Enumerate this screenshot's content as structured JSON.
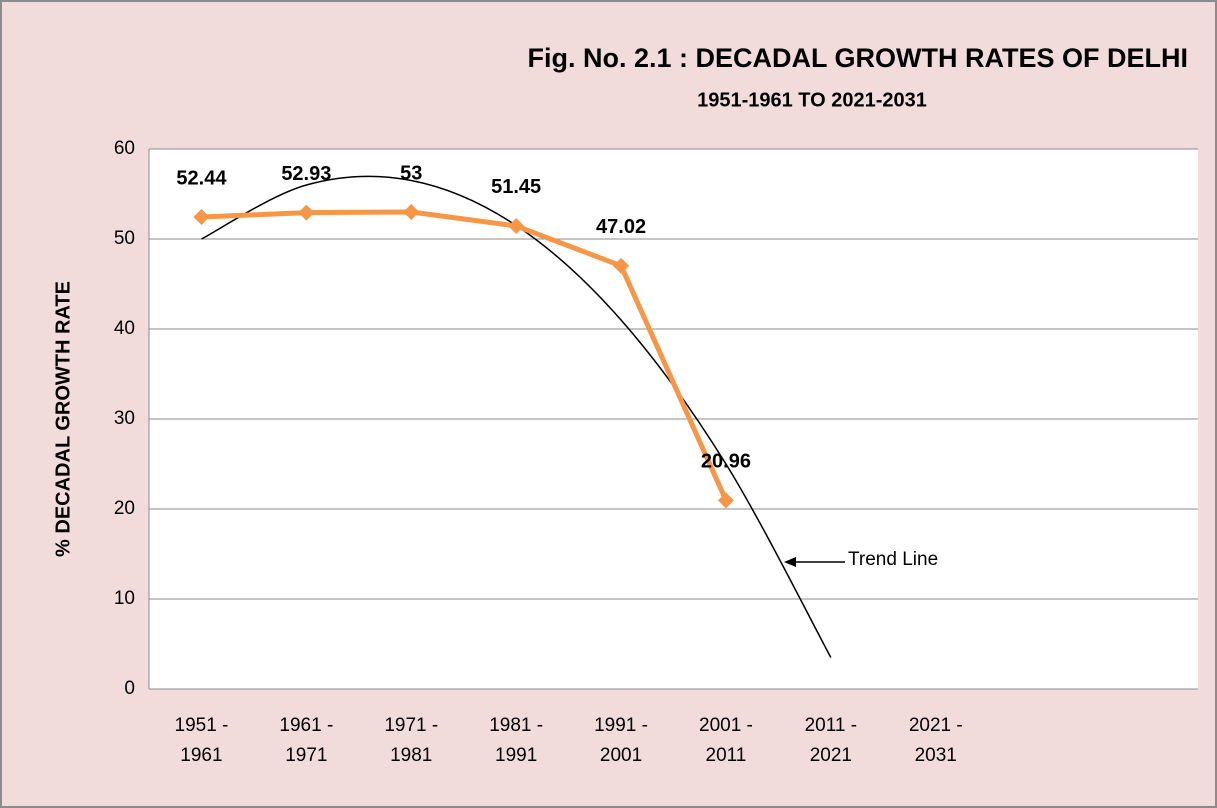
{
  "chart_data": {
    "type": "line",
    "title": "Fig. No. 2.1 : DECADAL GROWTH RATES OF DELHI",
    "subtitle": "1951-1961 TO 2021-2031",
    "y_label": "% DECADAL GROWTH RATE",
    "categories": [
      "1951 - 1961",
      "1961 - 1971",
      "1971 - 1981",
      "1981 - 1991",
      "1991 - 2001",
      "2001 - 2011",
      "2011 - 2021",
      "2021 - 2031",
      null,
      null
    ],
    "series": [
      {
        "name": "Decadal Growth Rate",
        "color": "#f79646",
        "values": [
          52.44,
          52.93,
          53,
          51.45,
          47.02,
          20.96,
          null,
          null,
          null,
          null
        ]
      },
      {
        "name": "Trend Line",
        "color": "#000000",
        "values": [
          50,
          56,
          56.5,
          51.5,
          41,
          25,
          3.5,
          null,
          null,
          null
        ]
      }
    ],
    "annotation": "Trend Line",
    "ylim": [
      0,
      60
    ],
    "yticks": [
      0,
      10,
      20,
      30,
      40,
      50,
      60
    ],
    "grid": true
  }
}
